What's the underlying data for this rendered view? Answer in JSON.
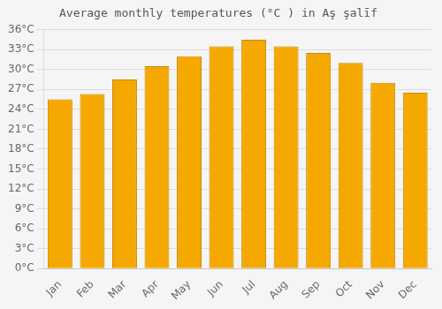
{
  "chart_data": {
    "type": "bar",
    "title": "Average monthly temperatures (°C ) in Aş şalīf",
    "categories": [
      "Jan",
      "Feb",
      "Mar",
      "Apr",
      "May",
      "Jun",
      "Jul",
      "Aug",
      "Sep",
      "Oct",
      "Nov",
      "Dec"
    ],
    "values": [
      25.5,
      26.3,
      28.5,
      30.5,
      32.0,
      33.5,
      34.5,
      33.5,
      32.5,
      31.0,
      28.0,
      26.5
    ],
    "color": "#F5A800",
    "ylim": [
      0,
      36
    ],
    "yticks": [
      {
        "value": 0,
        "label": "0°C"
      },
      {
        "value": 3,
        "label": "3°C"
      },
      {
        "value": 6,
        "label": "6°C"
      },
      {
        "value": 9,
        "label": "9°C"
      },
      {
        "value": 12,
        "label": "12°C"
      },
      {
        "value": 15,
        "label": "15°C"
      },
      {
        "value": 18,
        "label": "18°C"
      },
      {
        "value": 21,
        "label": "21°C"
      },
      {
        "value": 24,
        "label": "24°C"
      },
      {
        "value": 27,
        "label": "27°C"
      },
      {
        "value": 30,
        "label": "30°C"
      },
      {
        "value": 33,
        "label": "33°C"
      },
      {
        "value": 36,
        "label": "36°C"
      }
    ],
    "grid": true
  }
}
